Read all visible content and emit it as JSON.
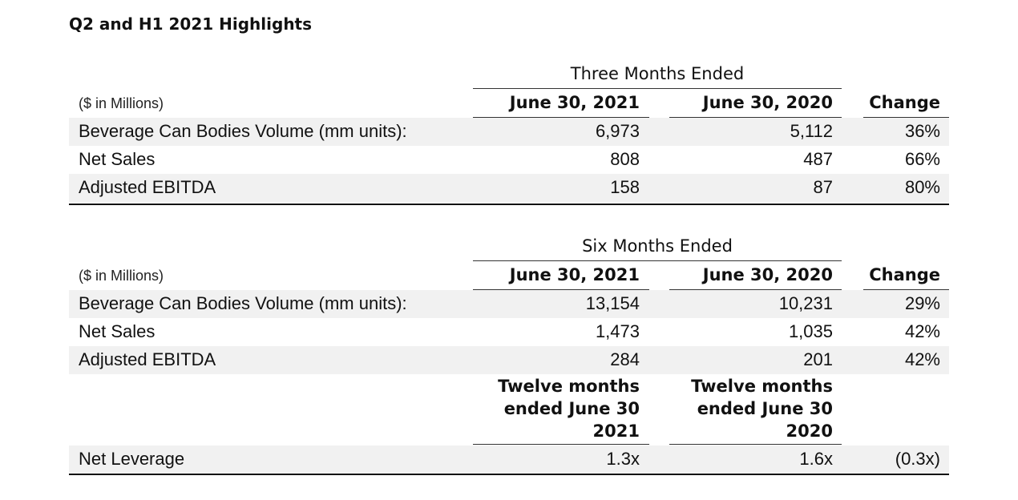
{
  "title": "Q2 and H1 2021 Highlights",
  "three_months": {
    "group_header": "Three Months Ended",
    "units_label": "($ in Millions)",
    "col1": "June 30, 2021",
    "col2": "June 30, 2020",
    "col3": "Change",
    "rows": [
      {
        "label": "Beverage Can Bodies Volume (mm units):",
        "v1": "6,973",
        "v2": "5,112",
        "change": "36%"
      },
      {
        "label": "Net Sales",
        "v1": "808",
        "v2": "487",
        "change": "66%"
      },
      {
        "label": "Adjusted EBITDA",
        "v1": "158",
        "v2": "87",
        "change": "80%"
      }
    ]
  },
  "six_months": {
    "group_header": "Six Months Ended",
    "units_label": "($ in Millions)",
    "col1": "June 30, 2021",
    "col2": "June 30, 2020",
    "col3": "Change",
    "rows": [
      {
        "label": "Beverage Can Bodies Volume (mm units):",
        "v1": "13,154",
        "v2": "10,231",
        "change": "29%"
      },
      {
        "label": "Net Sales",
        "v1": "1,473",
        "v2": "1,035",
        "change": "42%"
      },
      {
        "label": "Adjusted EBITDA",
        "v1": "284",
        "v2": "201",
        "change": "42%"
      }
    ]
  },
  "twelve_months": {
    "col1_line1": "Twelve months",
    "col1_line2": "ended June 30",
    "col1_line3": "2021",
    "col2_line1": "Twelve months",
    "col2_line2": "ended June 30",
    "col2_line3": "2020",
    "rows": [
      {
        "label": "Net Leverage",
        "v1": "1.3x",
        "v2": "1.6x",
        "change": "(0.3x)"
      }
    ]
  }
}
